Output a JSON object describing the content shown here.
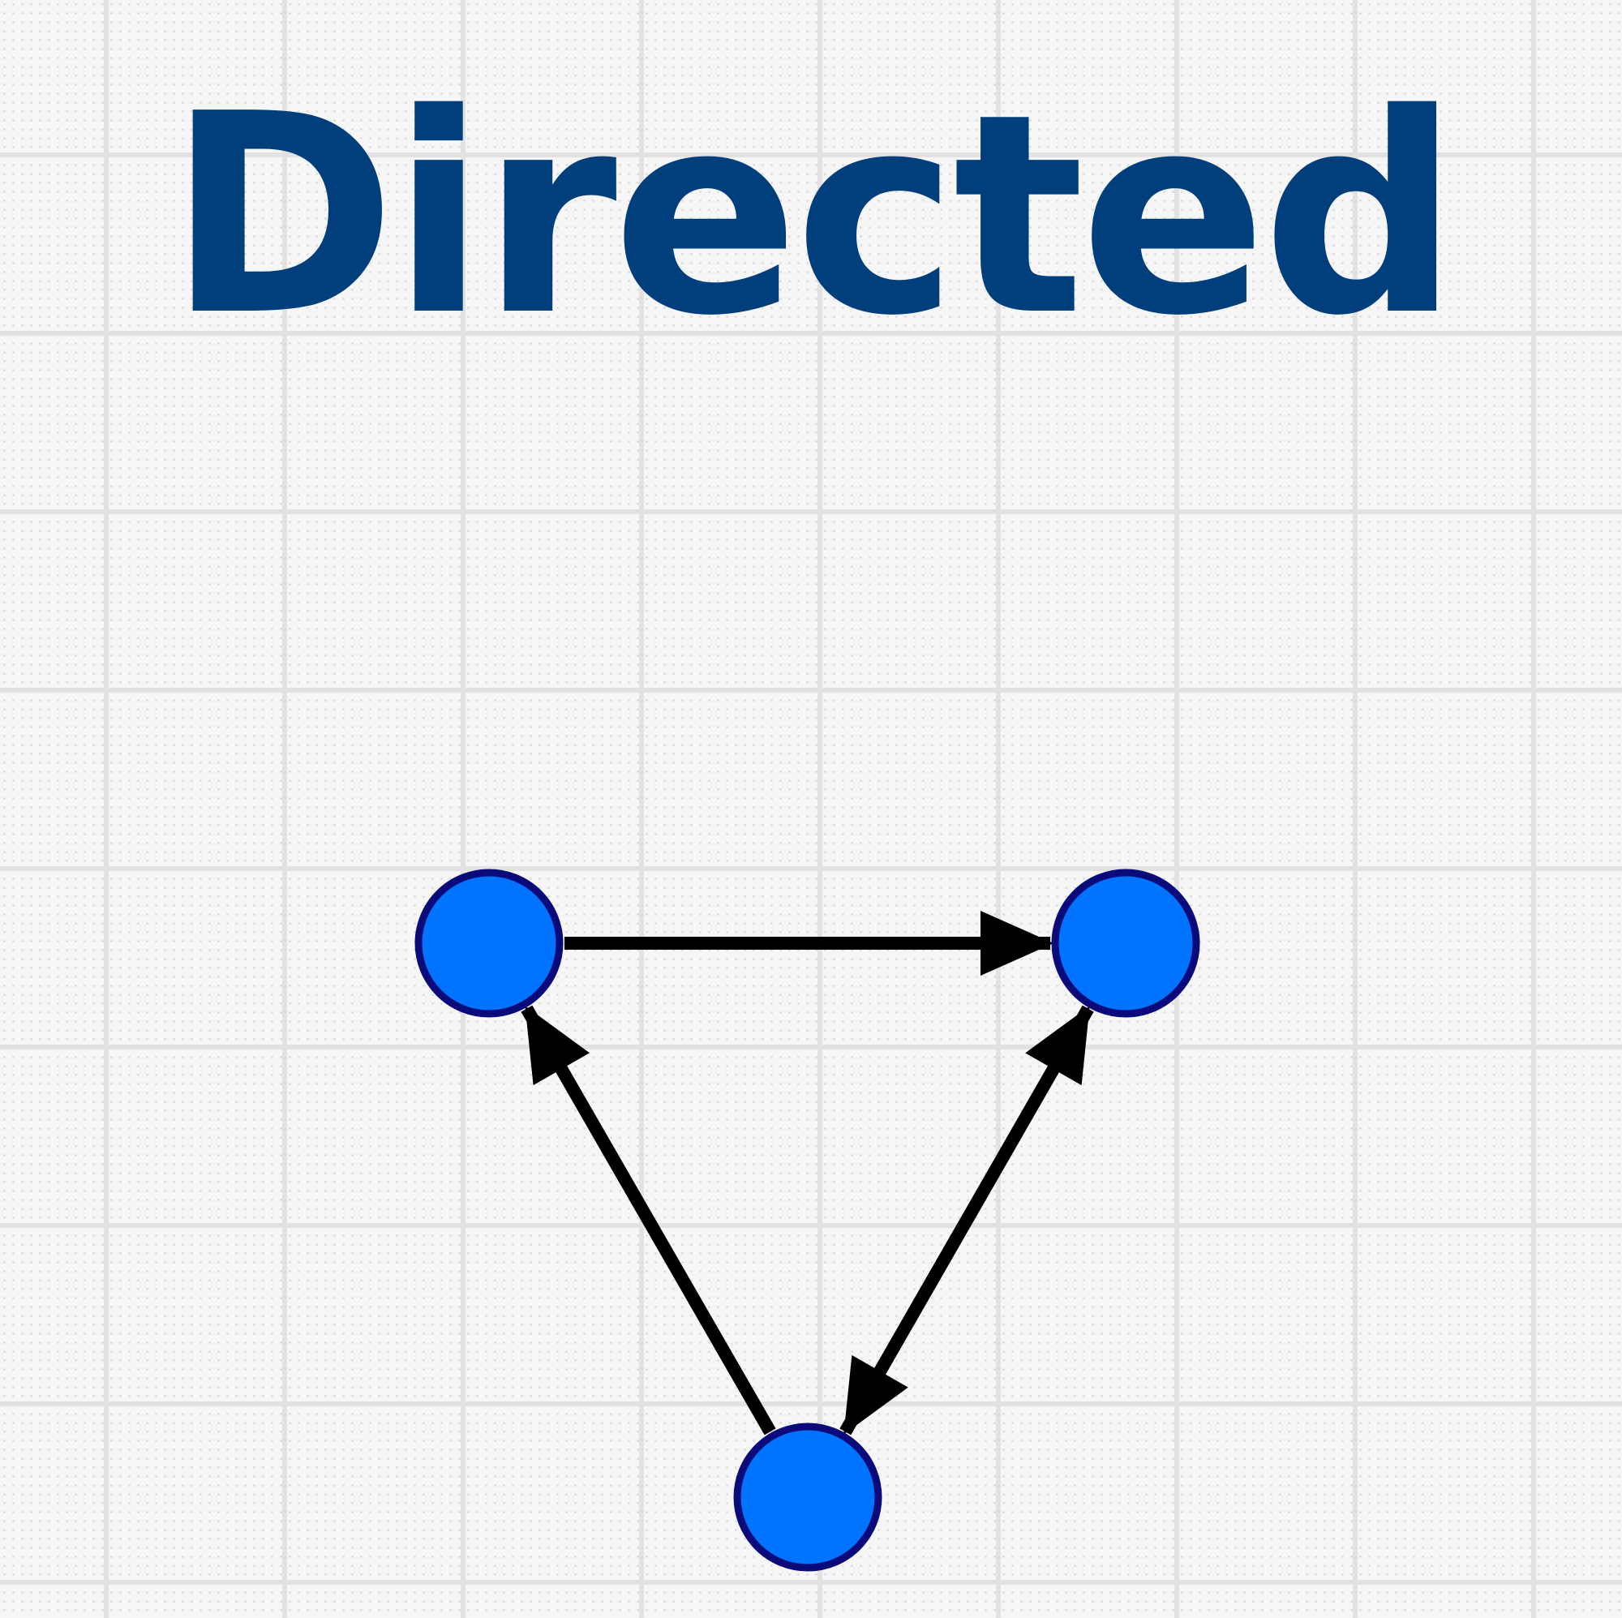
{
  "title": "Directed",
  "colors": {
    "title": "#003f7b",
    "node_fill": "#0073ff",
    "node_stroke": "#0a0a7a",
    "edge": "#000000",
    "grid_line": "#e2e2e2",
    "background": "#f6f6f6"
  },
  "graph": {
    "directed": true,
    "nodes": [
      {
        "id": "left"
      },
      {
        "id": "right"
      },
      {
        "id": "bottom"
      }
    ],
    "edges": [
      {
        "from": "left",
        "to": "right"
      },
      {
        "from": "bottom",
        "to": "left"
      },
      {
        "from": "bottom",
        "to": "right"
      },
      {
        "from": "right",
        "to": "bottom"
      }
    ]
  }
}
